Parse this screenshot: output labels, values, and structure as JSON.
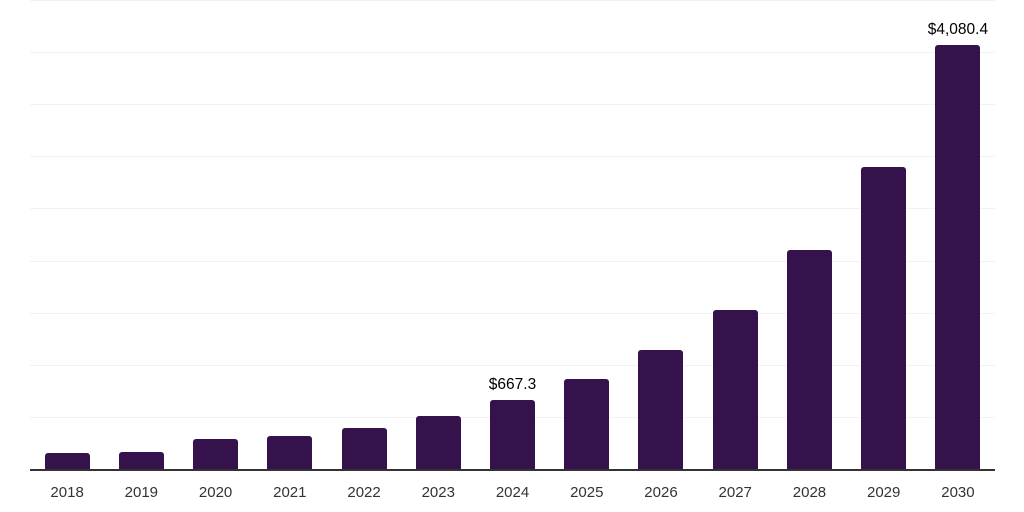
{
  "chart_data": {
    "type": "bar",
    "title": "",
    "xlabel": "",
    "ylabel": "",
    "categories": [
      "2018",
      "2019",
      "2020",
      "2021",
      "2022",
      "2023",
      "2024",
      "2025",
      "2026",
      "2027",
      "2028",
      "2029",
      "2030"
    ],
    "values": [
      165,
      176,
      294,
      327,
      400,
      519,
      667.3,
      871,
      1152,
      1536,
      2108,
      2905,
      4080.4
    ],
    "data_labels": [
      "",
      "",
      "",
      "",
      "",
      "",
      "$667.3",
      "",
      "",
      "",
      "",
      "",
      "$4,080.4"
    ],
    "ylim": [
      0,
      4500
    ],
    "gridline_step": 500,
    "grid": true,
    "legend_position": "none",
    "colors": {
      "bar": "#35124B",
      "gridline": "#f2f2f2",
      "axis_line": "#333333",
      "tick_label": "#333333",
      "data_label": "#000000",
      "background": "#ffffff"
    }
  }
}
